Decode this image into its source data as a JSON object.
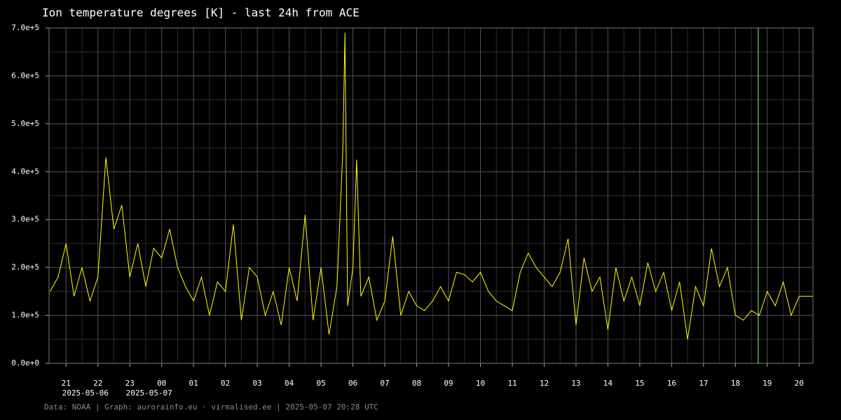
{
  "chart_data": {
    "type": "line",
    "title": "Ion temperature degrees [K] - last 24h from ACE",
    "footer": "Data: NOAA | Graph: aurorainfo.eu · virmalised.ee | 2025-05-07 20:28 UTC",
    "x": [
      "2025-05-06 20:30",
      "2025-05-06 20:45",
      "2025-05-06 21:00",
      "2025-05-06 21:15",
      "2025-05-06 21:30",
      "2025-05-06 21:45",
      "2025-05-06 22:00",
      "2025-05-06 22:15",
      "2025-05-06 22:30",
      "2025-05-06 22:45",
      "2025-05-06 23:00",
      "2025-05-06 23:15",
      "2025-05-06 23:30",
      "2025-05-06 23:45",
      "2025-05-07 00:00",
      "2025-05-07 00:15",
      "2025-05-07 00:30",
      "2025-05-07 00:45",
      "2025-05-07 01:00",
      "2025-05-07 01:15",
      "2025-05-07 01:30",
      "2025-05-07 01:45",
      "2025-05-07 02:00",
      "2025-05-07 02:15",
      "2025-05-07 02:30",
      "2025-05-07 02:45",
      "2025-05-07 03:00",
      "2025-05-07 03:15",
      "2025-05-07 03:30",
      "2025-05-07 03:45",
      "2025-05-07 04:00",
      "2025-05-07 04:15",
      "2025-05-07 04:30",
      "2025-05-07 04:45",
      "2025-05-07 05:00",
      "2025-05-07 05:15",
      "2025-05-07 05:30",
      "2025-05-07 05:41",
      "2025-05-07 05:45",
      "2025-05-07 05:50",
      "2025-05-07 06:00",
      "2025-05-07 06:07",
      "2025-05-07 06:15",
      "2025-05-07 06:30",
      "2025-05-07 06:45",
      "2025-05-07 07:00",
      "2025-05-07 07:15",
      "2025-05-07 07:30",
      "2025-05-07 07:45",
      "2025-05-07 08:00",
      "2025-05-07 08:15",
      "2025-05-07 08:30",
      "2025-05-07 08:45",
      "2025-05-07 09:00",
      "2025-05-07 09:15",
      "2025-05-07 09:30",
      "2025-05-07 09:45",
      "2025-05-07 10:00",
      "2025-05-07 10:15",
      "2025-05-07 10:30",
      "2025-05-07 10:45",
      "2025-05-07 11:00",
      "2025-05-07 11:15",
      "2025-05-07 11:30",
      "2025-05-07 11:45",
      "2025-05-07 12:00",
      "2025-05-07 12:15",
      "2025-05-07 12:30",
      "2025-05-07 12:45",
      "2025-05-07 13:00",
      "2025-05-07 13:15",
      "2025-05-07 13:30",
      "2025-05-07 13:45",
      "2025-05-07 14:00",
      "2025-05-07 14:15",
      "2025-05-07 14:30",
      "2025-05-07 14:45",
      "2025-05-07 15:00",
      "2025-05-07 15:15",
      "2025-05-07 15:30",
      "2025-05-07 15:45",
      "2025-05-07 16:00",
      "2025-05-07 16:15",
      "2025-05-07 16:30",
      "2025-05-07 16:45",
      "2025-05-07 17:00",
      "2025-05-07 17:15",
      "2025-05-07 17:30",
      "2025-05-07 17:45",
      "2025-05-07 18:00",
      "2025-05-07 18:15",
      "2025-05-07 18:30",
      "2025-05-07 18:45",
      "2025-05-07 19:00",
      "2025-05-07 19:15",
      "2025-05-07 19:30",
      "2025-05-07 19:45",
      "2025-05-07 20:00",
      "2025-05-07 20:15",
      "2025-05-07 20:26"
    ],
    "series": [
      {
        "name": "Ion temperature",
        "color": "#ffff00",
        "values": [
          150000,
          180000,
          250000,
          140000,
          200000,
          130000,
          180000,
          430000,
          280000,
          330000,
          180000,
          250000,
          160000,
          240000,
          220000,
          280000,
          200000,
          160000,
          130000,
          180000,
          100000,
          170000,
          150000,
          290000,
          90000,
          200000,
          180000,
          100000,
          150000,
          80000,
          200000,
          130000,
          310000,
          90000,
          200000,
          60000,
          160000,
          445000,
          690000,
          120000,
          200000,
          425000,
          140000,
          180000,
          90000,
          130000,
          265000,
          100000,
          150000,
          120000,
          110000,
          130000,
          160000,
          130000,
          190000,
          185000,
          170000,
          190000,
          150000,
          130000,
          120000,
          110000,
          190000,
          230000,
          200000,
          180000,
          160000,
          190000,
          260000,
          80000,
          220000,
          150000,
          180000,
          70000,
          200000,
          130000,
          180000,
          120000,
          210000,
          150000,
          190000,
          110000,
          170000,
          50000,
          160000,
          120000,
          240000,
          160000,
          200000,
          100000,
          90000,
          110000,
          100000,
          150000,
          120000,
          170000,
          100000,
          140000,
          140000,
          140000
        ]
      }
    ],
    "marker_x": "2025-05-07 18:43",
    "marker_color": "#80ff80",
    "xlim": [
      "2025-05-06 20:28",
      "2025-05-07 20:26"
    ],
    "xticks": [
      {
        "value": "2025-05-06 21:00",
        "label": "21"
      },
      {
        "value": "2025-05-06 22:00",
        "label": "22"
      },
      {
        "value": "2025-05-06 23:00",
        "label": "23"
      },
      {
        "value": "2025-05-07 00:00",
        "label": "00"
      },
      {
        "value": "2025-05-07 01:00",
        "label": "01"
      },
      {
        "value": "2025-05-07 02:00",
        "label": "02"
      },
      {
        "value": "2025-05-07 03:00",
        "label": "03"
      },
      {
        "value": "2025-05-07 04:00",
        "label": "04"
      },
      {
        "value": "2025-05-07 05:00",
        "label": "05"
      },
      {
        "value": "2025-05-07 06:00",
        "label": "06"
      },
      {
        "value": "2025-05-07 07:00",
        "label": "07"
      },
      {
        "value": "2025-05-07 08:00",
        "label": "08"
      },
      {
        "value": "2025-05-07 09:00",
        "label": "09"
      },
      {
        "value": "2025-05-07 10:00",
        "label": "10"
      },
      {
        "value": "2025-05-07 11:00",
        "label": "11"
      },
      {
        "value": "2025-05-07 12:00",
        "label": "12"
      },
      {
        "value": "2025-05-07 13:00",
        "label": "13"
      },
      {
        "value": "2025-05-07 14:00",
        "label": "14"
      },
      {
        "value": "2025-05-07 15:00",
        "label": "15"
      },
      {
        "value": "2025-05-07 16:00",
        "label": "16"
      },
      {
        "value": "2025-05-07 17:00",
        "label": "17"
      },
      {
        "value": "2025-05-07 18:00",
        "label": "18"
      },
      {
        "value": "2025-05-07 19:00",
        "label": "19"
      },
      {
        "value": "2025-05-07 20:00",
        "label": "20"
      }
    ],
    "date_labels": [
      {
        "value": "2025-05-06 22:00",
        "label": "2025-05-06"
      },
      {
        "value": "2025-05-07 00:00",
        "label": "2025-05-07"
      }
    ],
    "ylim": [
      0,
      700000
    ],
    "yticks": [
      {
        "value": 0,
        "label": "0.0e+0"
      },
      {
        "value": 100000,
        "label": "1.0e+5"
      },
      {
        "value": 200000,
        "label": "2.0e+5"
      },
      {
        "value": 300000,
        "label": "3.0e+5"
      },
      {
        "value": 400000,
        "label": "4.0e+5"
      },
      {
        "value": 500000,
        "label": "5.0e+5"
      },
      {
        "value": 600000,
        "label": "6.0e+5"
      },
      {
        "value": 700000,
        "label": "7.0e+5"
      }
    ],
    "grid": true
  }
}
